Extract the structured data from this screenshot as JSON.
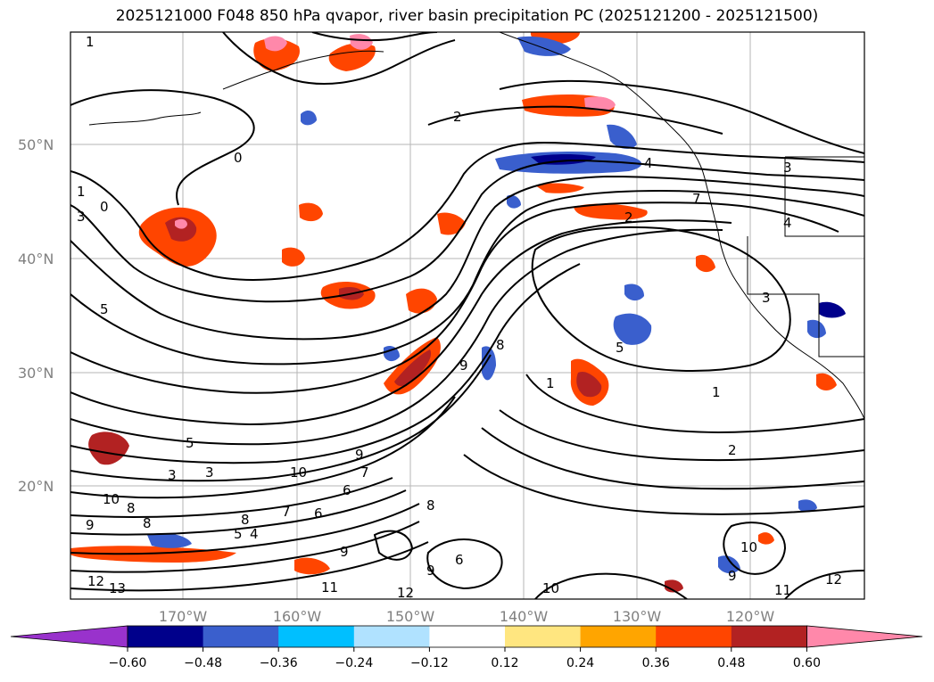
{
  "title": "2025121000 F048 850 hPa qvapor, river basin precipitation PC (2025121200 - 2025121500)",
  "map": {
    "lat_labels": [
      "50°N",
      "40°N",
      "30°N",
      "20°N"
    ],
    "lon_labels": [
      "170°W",
      "160°W",
      "150°W",
      "140°W",
      "130°W",
      "120°W"
    ],
    "contour_labels": [
      "1",
      "2",
      "0",
      "1",
      "0",
      "3",
      "5",
      "5",
      "3",
      "3",
      "10",
      "10",
      "8",
      "7",
      "6",
      "9",
      "8",
      "5",
      "4",
      "7",
      "13",
      "12",
      "9",
      "8",
      "9",
      "11",
      "12",
      "6",
      "7",
      "2",
      "4",
      "1",
      "8",
      "5",
      "1",
      "2",
      "3",
      "10",
      "9",
      "11",
      "12",
      "9",
      "10",
      "6",
      "8",
      "9",
      "3",
      "4"
    ]
  },
  "colorbar": {
    "ticks": [
      "−0.60",
      "−0.48",
      "−0.36",
      "−0.24",
      "−0.12",
      "0.12",
      "0.24",
      "0.36",
      "0.48",
      "0.60"
    ],
    "colors": [
      "#9932cc",
      "#00008b",
      "#3a5fcd",
      "#00bfff",
      "#b0e2ff",
      "#ffffff",
      "#ffe680",
      "#ffa500",
      "#ff4500",
      "#b22222",
      "#ff88aa"
    ]
  }
}
